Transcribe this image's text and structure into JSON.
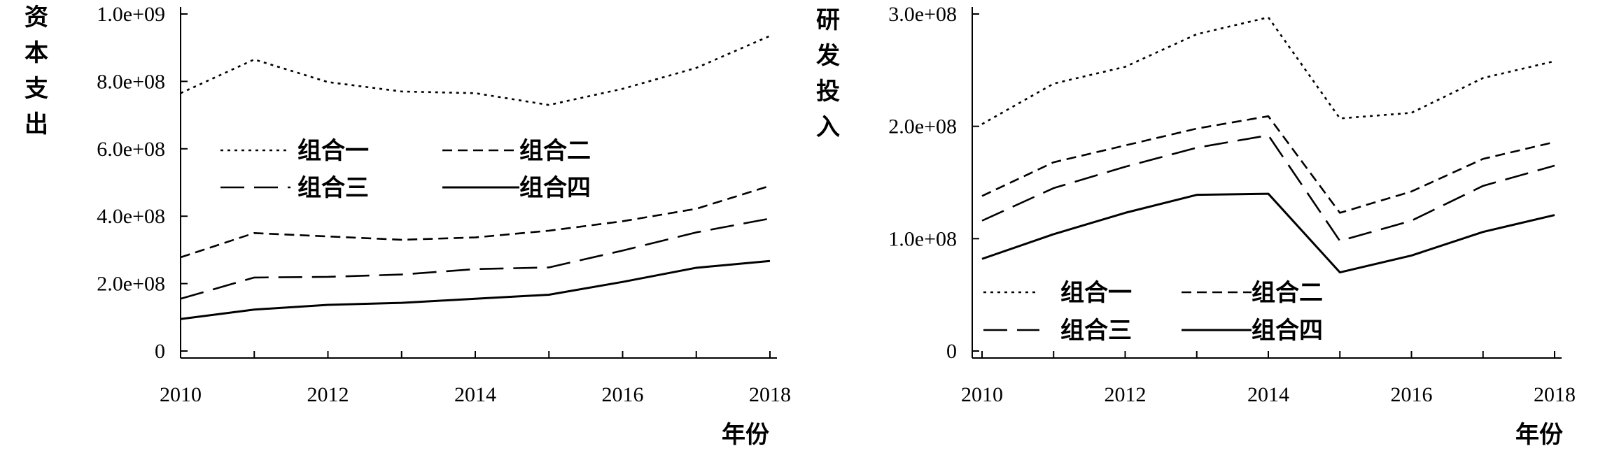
{
  "chart_data": [
    {
      "type": "line",
      "ylabel": "资本支出",
      "xlabel": "年份",
      "x": [
        2010,
        2011,
        2012,
        2013,
        2014,
        2015,
        2016,
        2017,
        2018
      ],
      "xticks": [
        "2010",
        "2012",
        "2014",
        "2016",
        "2018"
      ],
      "yticks": [
        "0",
        "2.0e+08",
        "4.0e+08",
        "6.0e+08",
        "8.0e+08",
        "1.0e+09"
      ],
      "ylim": [
        0,
        1000000000
      ],
      "legend_position": "center-left",
      "series": [
        {
          "name": "组合一",
          "style": "dotted",
          "values": [
            765000000,
            865000000,
            798000000,
            770000000,
            765000000,
            730000000,
            778000000,
            840000000,
            935000000
          ]
        },
        {
          "name": "组合二",
          "style": "short-dash",
          "values": [
            278000000,
            350000000,
            340000000,
            330000000,
            337000000,
            357000000,
            385000000,
            422000000,
            490000000
          ]
        },
        {
          "name": "组合三",
          "style": "long-dash",
          "values": [
            155000000,
            218000000,
            220000000,
            227000000,
            243000000,
            248000000,
            298000000,
            352000000,
            393000000
          ]
        },
        {
          "name": "组合四",
          "style": "solid",
          "values": [
            95000000,
            123000000,
            137000000,
            143000000,
            155000000,
            167000000,
            205000000,
            247000000,
            267000000
          ]
        }
      ]
    },
    {
      "type": "line",
      "ylabel": "研发投入",
      "xlabel": "年份",
      "x": [
        2010,
        2011,
        2012,
        2013,
        2014,
        2015,
        2016,
        2017,
        2018
      ],
      "xticks": [
        "2010",
        "2012",
        "2014",
        "2016",
        "2018"
      ],
      "yticks": [
        "0",
        "1.0e+08",
        "2.0e+08",
        "3.0e+08"
      ],
      "ylim": [
        0,
        300000000
      ],
      "legend_position": "bottom-left",
      "series": [
        {
          "name": "组合一",
          "style": "dotted",
          "values": [
            202000000,
            238000000,
            253000000,
            282000000,
            297000000,
            207000000,
            212000000,
            243000000,
            258000000
          ]
        },
        {
          "name": "组合二",
          "style": "short-dash",
          "values": [
            138000000,
            168000000,
            183000000,
            198000000,
            209000000,
            123000000,
            142000000,
            171000000,
            186000000
          ]
        },
        {
          "name": "组合三",
          "style": "long-dash",
          "values": [
            116000000,
            145000000,
            164000000,
            181000000,
            192000000,
            98000000,
            116000000,
            147000000,
            165000000
          ]
        },
        {
          "name": "组合四",
          "style": "solid",
          "values": [
            82000000,
            104000000,
            123000000,
            139000000,
            140000000,
            70000000,
            85000000,
            106000000,
            121000000
          ]
        }
      ]
    }
  ]
}
